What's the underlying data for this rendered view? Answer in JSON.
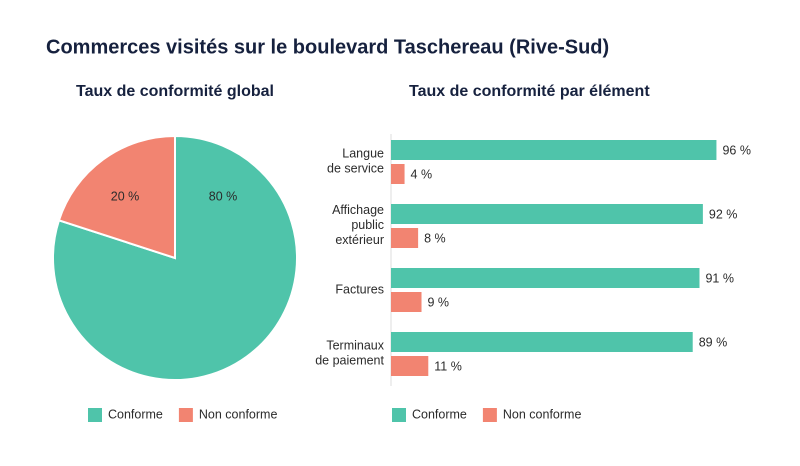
{
  "title": "Commerces visités sur le boulevard Taschereau (Rive-Sud)",
  "chart_data": [
    {
      "type": "pie",
      "title": "Taux de conformité global",
      "categories": [
        "Conforme",
        "Non conforme"
      ],
      "values": [
        80,
        20
      ],
      "value_labels": [
        "80 %",
        "20 %"
      ],
      "colors": [
        "#4fc4aa",
        "#f28471"
      ]
    },
    {
      "type": "hbar",
      "title": "Taux de conformité par élément",
      "categories": [
        "Langue\nde service",
        "Affichage\npublic\nextérieur",
        "Factures",
        "Terminaux\nde paiement"
      ],
      "series": [
        {
          "name": "Conforme",
          "color": "#4fc4aa",
          "values": [
            96,
            92,
            91,
            89
          ],
          "value_labels": [
            "96 %",
            "92 %",
            "91 %",
            "89 %"
          ]
        },
        {
          "name": "Non conforme",
          "color": "#f28471",
          "values": [
            4,
            8,
            9,
            11
          ],
          "value_labels": [
            "4 %",
            "8 %",
            "9 %",
            "11 %"
          ]
        }
      ]
    }
  ]
}
